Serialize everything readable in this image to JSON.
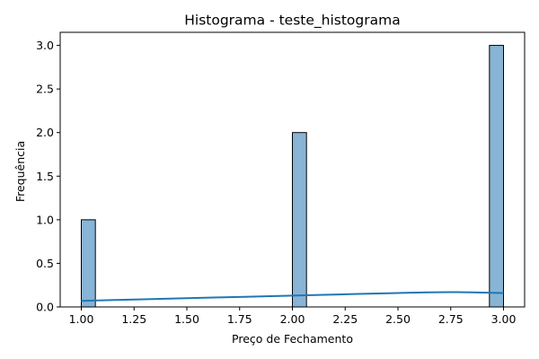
{
  "chart_data": {
    "type": "bar",
    "title": "Histograma - teste_histograma",
    "xlabel": "Preço de Fechamento",
    "ylabel": "Frequência",
    "xlim": [
      0.9,
      3.1
    ],
    "ylim": [
      0,
      3.15
    ],
    "xticks": [
      "1.00",
      "1.25",
      "1.50",
      "1.75",
      "2.00",
      "2.25",
      "2.50",
      "2.75",
      "3.00"
    ],
    "yticks": [
      "0.0",
      "0.5",
      "1.0",
      "1.5",
      "2.0",
      "2.5",
      "3.0"
    ],
    "bins": [
      {
        "x0": 1.0,
        "x1": 1.0667,
        "count": 1
      },
      {
        "x0": 2.0,
        "x1": 2.0667,
        "count": 2
      },
      {
        "x0": 2.9333,
        "x1": 3.0,
        "count": 3
      }
    ],
    "kde": {
      "x": [
        1.0,
        1.25,
        1.5,
        1.75,
        2.0,
        2.25,
        2.5,
        2.75,
        3.0
      ],
      "y": [
        0.07,
        0.085,
        0.1,
        0.115,
        0.13,
        0.145,
        0.16,
        0.17,
        0.16
      ]
    },
    "colors": {
      "bar_fill": "#88b4d5",
      "bar_edge": "#000000",
      "kde_line": "#1f77b4"
    },
    "grid": false,
    "legend": "none"
  }
}
